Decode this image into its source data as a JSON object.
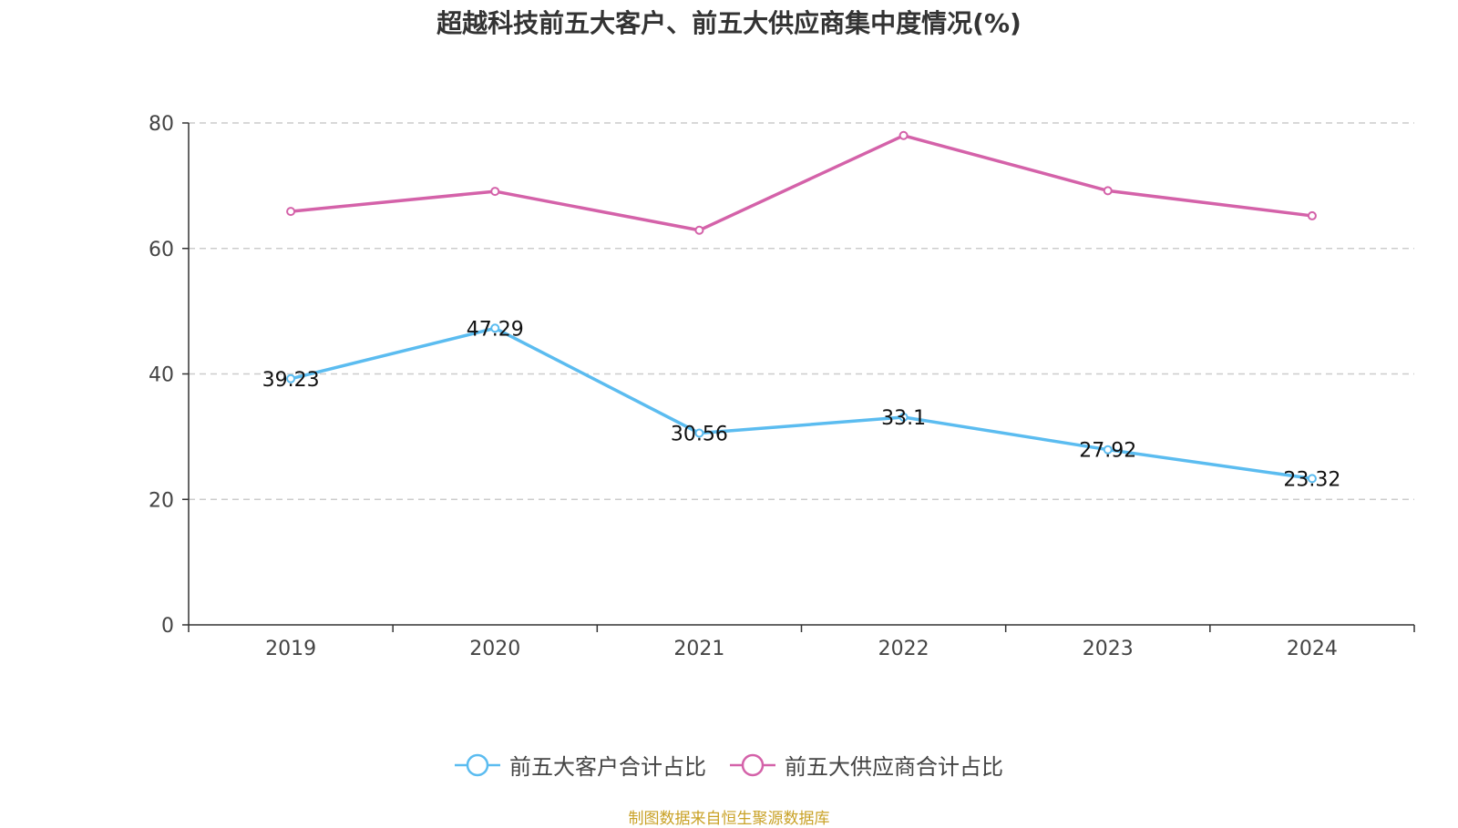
{
  "title": "超越科技前五大客户、前五大供应商集中度情况(%)",
  "source_note": "制图数据来自恒生聚源数据库",
  "colors": {
    "customer": "#5bbcf0",
    "supplier": "#d462a9",
    "axis": "#333333",
    "grid": "#cccccc"
  },
  "chart_data": {
    "type": "line",
    "title": "超越科技前五大客户、前五大供应商集中度情况(%)",
    "categories": [
      "2019",
      "2020",
      "2021",
      "2022",
      "2023",
      "2024"
    ],
    "ylim": [
      0,
      80
    ],
    "yticks": [
      0,
      20,
      40,
      60,
      80
    ],
    "grid": true,
    "legend_position": "bottom",
    "series": [
      {
        "name": "前五大客户合计占比",
        "values": [
          39.23,
          47.29,
          30.56,
          33.1,
          27.92,
          23.32
        ],
        "labels": [
          "39.23",
          "47.29",
          "30.56",
          "33.1",
          "27.92",
          "23.32"
        ],
        "color": "#5bbcf0"
      },
      {
        "name": "前五大供应商合计占比",
        "values": [
          65.9,
          69.1,
          62.9,
          78.0,
          69.2,
          65.2
        ],
        "color": "#d462a9"
      }
    ]
  }
}
